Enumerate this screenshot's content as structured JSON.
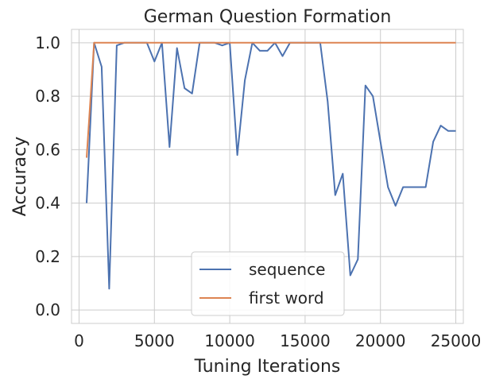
{
  "chart_data": {
    "type": "line",
    "title": "German Question Formation",
    "xlabel": "Tuning Iterations",
    "ylabel": "Accuracy",
    "xlim": [
      -500,
      25500
    ],
    "ylim": [
      -0.05,
      1.05
    ],
    "xticks": [
      0,
      5000,
      10000,
      15000,
      20000,
      25000
    ],
    "xtick_labels": [
      "0",
      "5000",
      "10000",
      "15000",
      "20000",
      "25000"
    ],
    "yticks": [
      0.0,
      0.2,
      0.4,
      0.6,
      0.8,
      1.0
    ],
    "ytick_labels": [
      "0.0",
      "0.2",
      "0.4",
      "0.6",
      "0.8",
      "1.0"
    ],
    "grid": true,
    "legend_position": "lower-center",
    "series": [
      {
        "name": "sequence",
        "color": "#4c72b0",
        "x": [
          500,
          1000,
          1500,
          2000,
          2500,
          3000,
          3500,
          4000,
          4500,
          5000,
          5500,
          6000,
          6500,
          7000,
          7500,
          8000,
          8500,
          9000,
          9500,
          10000,
          10500,
          11000,
          11500,
          12000,
          12500,
          13000,
          13500,
          14000,
          14500,
          15000,
          15500,
          16000,
          16500,
          17000,
          17500,
          18000,
          18500,
          19000,
          19500,
          20000,
          20500,
          21000,
          21500,
          22000,
          22500,
          23000,
          23500,
          24000,
          24500,
          25000
        ],
        "y": [
          0.4,
          1.0,
          0.91,
          0.08,
          0.99,
          1.0,
          1.0,
          1.0,
          1.0,
          0.93,
          1.0,
          0.61,
          0.98,
          0.83,
          0.81,
          1.0,
          1.0,
          1.0,
          0.99,
          1.0,
          0.58,
          0.86,
          1.0,
          0.97,
          0.97,
          1.0,
          0.95,
          1.0,
          1.0,
          1.0,
          1.0,
          1.0,
          0.78,
          0.43,
          0.51,
          0.13,
          0.19,
          0.84,
          0.8,
          0.63,
          0.46,
          0.39,
          0.46,
          0.46,
          0.46,
          0.46,
          0.63,
          0.69,
          0.67,
          0.67
        ]
      },
      {
        "name": "first word",
        "color": "#dd8452",
        "x": [
          500,
          1000,
          1500,
          2000,
          3000,
          5000,
          10000,
          15000,
          20000,
          25000
        ],
        "y": [
          0.57,
          1.0,
          1.0,
          1.0,
          1.0,
          1.0,
          1.0,
          1.0,
          1.0,
          1.0
        ]
      }
    ]
  }
}
